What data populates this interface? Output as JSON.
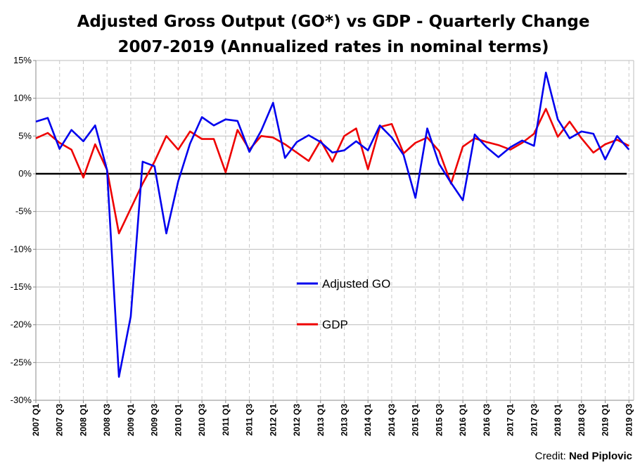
{
  "chart_data": {
    "type": "line",
    "title": "Adjusted Gross Output (GO*) vs GDP - Quarterly Change",
    "subtitle": "2007-2019 (Annualized rates in nominal terms)",
    "xlabel": "",
    "ylabel": "",
    "ylim": [
      -30,
      15
    ],
    "y_ticks": [
      -30,
      -25,
      -20,
      -15,
      -10,
      -5,
      0,
      5,
      10,
      15
    ],
    "y_tick_labels": [
      "-30%",
      "-25%",
      "-20%",
      "-15%",
      "-10%",
      "-5%",
      "0%",
      "5%",
      "10%",
      "15%"
    ],
    "x": [
      "2007 Q1",
      "2007 Q2",
      "2007 Q3",
      "2007 Q4",
      "2008 Q1",
      "2008 Q2",
      "2008 Q3",
      "2008 Q4",
      "2009 Q1",
      "2009 Q2",
      "2009 Q3",
      "2009 Q4",
      "2010 Q1",
      "2010 Q2",
      "2010 Q3",
      "2010 Q4",
      "2011 Q1",
      "2011 Q2",
      "2011 Q3",
      "2011 Q4",
      "2012 Q1",
      "2012 Q2",
      "2012 Q3",
      "2012 Q4",
      "2013 Q1",
      "2013 Q2",
      "2013 Q3",
      "2013 Q4",
      "2014 Q1",
      "2014 Q2",
      "2014 Q3",
      "2014 Q4",
      "2015 Q1",
      "2015 Q2",
      "2015 Q3",
      "2015 Q4",
      "2016 Q1",
      "2016 Q2",
      "2016 Q3",
      "2016 Q4",
      "2017 Q1",
      "2017 Q2",
      "2017 Q3",
      "2017 Q4",
      "2018 Q1",
      "2018 Q2",
      "2018 Q3",
      "2018 Q4",
      "2019 Q1",
      "2019 Q2",
      "2019 Q3"
    ],
    "x_tick_labels": [
      "2007 Q1",
      "2007 Q3",
      "2008 Q1",
      "2008 Q3",
      "2009 Q1",
      "2009 Q3",
      "2010 Q1",
      "2010 Q3",
      "2011 Q1",
      "2011 Q3",
      "2012 Q1",
      "2012 Q3",
      "2013 Q1",
      "2013 Q3",
      "2014 Q1",
      "2014 Q3",
      "2015 Q1",
      "2015 Q3",
      "2016 Q1",
      "2016 Q3",
      "2017 Q1",
      "2017 Q3",
      "2018 Q1",
      "2018 Q3",
      "2019 Q1",
      "2019 Q3"
    ],
    "grid": true,
    "legend_position": "center-right",
    "zero_line": true,
    "series": [
      {
        "name": "Adjusted GO",
        "color": "#0000ee",
        "values": [
          6.9,
          7.4,
          3.3,
          5.8,
          4.3,
          6.4,
          0.5,
          -26.9,
          -18.9,
          1.6,
          1.0,
          -7.9,
          -1.0,
          4.0,
          7.5,
          6.4,
          7.2,
          7.0,
          2.9,
          5.7,
          9.4,
          2.1,
          4.2,
          5.1,
          4.2,
          2.8,
          3.1,
          4.3,
          3.1,
          6.4,
          4.8,
          2.5,
          -3.2,
          6.0,
          1.3,
          -1.2,
          -3.5,
          5.2,
          3.5,
          2.2,
          3.5,
          4.4,
          3.7,
          13.4,
          7.2,
          4.7,
          5.6,
          5.3,
          1.9,
          5.0,
          3.2
        ]
      },
      {
        "name": "GDP",
        "color": "#ee0000",
        "values": [
          4.7,
          5.4,
          4.1,
          3.2,
          -0.5,
          3.9,
          0.5,
          -7.9,
          -4.6,
          -1.3,
          1.6,
          5.0,
          3.2,
          5.6,
          4.6,
          4.6,
          0.2,
          5.8,
          3.2,
          5.0,
          4.8,
          3.9,
          2.8,
          1.7,
          4.4,
          1.6,
          5.0,
          6.0,
          0.6,
          6.2,
          6.6,
          2.7,
          4.1,
          4.8,
          3.0,
          -1.3,
          3.6,
          4.7,
          4.2,
          3.8,
          3.2,
          4.1,
          5.3,
          8.6,
          4.9,
          6.9,
          4.7,
          2.8,
          3.9,
          4.5,
          3.7
        ]
      }
    ]
  },
  "legend": {
    "items": [
      {
        "label": "Adjusted GO",
        "color": "#0000ee"
      },
      {
        "label": "GDP",
        "color": "#ee0000"
      }
    ]
  },
  "credit": {
    "prefix": "Credit:",
    "author": "Ned Piplovic"
  }
}
